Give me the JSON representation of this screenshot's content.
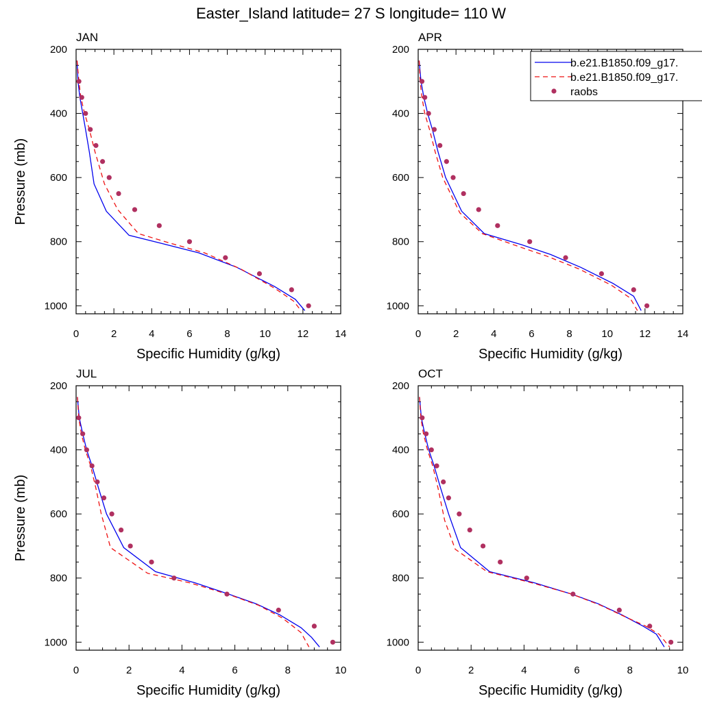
{
  "title": "Easter_Island  latitude= 27 S longitude= 110 W",
  "colors": {
    "model1": "#0000ee",
    "model2": "#ee1111",
    "obs": "#b03060",
    "axis": "#000000"
  },
  "legend": {
    "entries": [
      {
        "label": "b.e21.B1850.f09_g17.",
        "style": "solid-line",
        "color": "#0000ee"
      },
      {
        "label": "b.e21.B1850.f09_g17.",
        "style": "dashed-line",
        "color": "#ee1111"
      },
      {
        "label": "raobs",
        "style": "marker",
        "color": "#b03060"
      }
    ],
    "placement": "top-right (APR panel)"
  },
  "chart_data": [
    {
      "type": "line",
      "panel_label": "JAN",
      "xlabel": "Specific Humidity (g/kg)",
      "ylabel": "Pressure (mb)",
      "xlim": [
        0,
        14
      ],
      "xticks": [
        0,
        2,
        4,
        6,
        8,
        10,
        12,
        14
      ],
      "ylim": [
        1025,
        200
      ],
      "yticks": [
        200,
        400,
        600,
        800,
        1000
      ],
      "y_reversed": true,
      "grid": false,
      "series": [
        {
          "name": "b.e21.B1850.f09_g17.",
          "style": "solid",
          "color": "#0000ee",
          "x": [
            0.05,
            0.1,
            0.2,
            0.35,
            0.5,
            0.7,
            0.95,
            1.6,
            2.8,
            4.5,
            6.5,
            8.5,
            10.5,
            11.6,
            12.1
          ],
          "y": [
            235,
            300,
            350,
            400,
            450,
            520,
            620,
            705,
            780,
            805,
            835,
            880,
            940,
            980,
            1015
          ]
        },
        {
          "name": "b.e21.B1850.f09_g17.",
          "style": "dashed",
          "color": "#ee1111",
          "x": [
            0.05,
            0.15,
            0.25,
            0.45,
            0.7,
            1.0,
            1.5,
            2.2,
            3.3,
            5.0,
            6.8,
            8.7,
            10.5,
            11.5,
            11.9
          ],
          "y": [
            235,
            300,
            350,
            400,
            450,
            520,
            620,
            700,
            775,
            805,
            835,
            885,
            945,
            985,
            1015
          ]
        }
      ],
      "obs": {
        "name": "raobs",
        "color": "#b03060",
        "x": [
          0.15,
          0.3,
          0.5,
          0.75,
          1.05,
          1.4,
          1.75,
          2.25,
          3.1,
          4.4,
          6.0,
          7.9,
          9.7,
          11.4,
          12.3
        ],
        "y": [
          300,
          350,
          400,
          450,
          500,
          550,
          600,
          650,
          700,
          750,
          800,
          850,
          900,
          950,
          1000
        ]
      }
    },
    {
      "type": "line",
      "panel_label": "APR",
      "xlabel": "Specific Humidity (g/kg)",
      "ylabel": "",
      "xlim": [
        0,
        14
      ],
      "xticks": [
        0,
        2,
        4,
        6,
        8,
        10,
        12,
        14
      ],
      "ylim": [
        1025,
        200
      ],
      "yticks": [
        200,
        400,
        600,
        800,
        1000
      ],
      "y_reversed": true,
      "grid": false,
      "series": [
        {
          "name": "b.e21.B1850.f09_g17.",
          "style": "solid",
          "color": "#0000ee",
          "x": [
            0.05,
            0.15,
            0.3,
            0.5,
            0.75,
            1.05,
            1.45,
            2.3,
            3.5,
            5.5,
            7.0,
            8.6,
            10.3,
            11.4,
            11.8
          ],
          "y": [
            235,
            300,
            350,
            400,
            450,
            520,
            600,
            705,
            775,
            810,
            840,
            880,
            930,
            970,
            1015
          ]
        },
        {
          "name": "b.e21.B1850.f09_g17.",
          "style": "dashed",
          "color": "#ee1111",
          "x": [
            0.05,
            0.1,
            0.2,
            0.35,
            0.6,
            0.9,
            1.3,
            2.2,
            3.4,
            5.3,
            6.8,
            8.5,
            10.2,
            11.2,
            11.6
          ],
          "y": [
            235,
            300,
            350,
            400,
            450,
            520,
            600,
            710,
            775,
            815,
            845,
            885,
            935,
            975,
            1015
          ]
        }
      ],
      "obs": {
        "name": "raobs",
        "color": "#b03060",
        "x": [
          0.2,
          0.35,
          0.55,
          0.85,
          1.15,
          1.5,
          1.85,
          2.4,
          3.2,
          4.2,
          5.9,
          7.8,
          9.7,
          11.4,
          12.1
        ],
        "y": [
          300,
          350,
          400,
          450,
          500,
          550,
          600,
          650,
          700,
          750,
          800,
          850,
          900,
          950,
          1000
        ]
      }
    },
    {
      "type": "line",
      "panel_label": "JUL",
      "xlabel": "Specific Humidity (g/kg)",
      "ylabel": "Pressure (mb)",
      "xlim": [
        0,
        10
      ],
      "xticks": [
        0,
        2,
        4,
        6,
        8,
        10
      ],
      "ylim": [
        1025,
        200
      ],
      "yticks": [
        200,
        400,
        600,
        800,
        1000
      ],
      "y_reversed": true,
      "grid": false,
      "series": [
        {
          "name": "b.e21.B1850.f09_g17.",
          "style": "solid",
          "color": "#0000ee",
          "x": [
            0.05,
            0.12,
            0.25,
            0.4,
            0.6,
            0.85,
            1.15,
            1.8,
            3.0,
            4.5,
            5.7,
            6.8,
            7.7,
            8.5,
            8.9,
            9.2
          ],
          "y": [
            235,
            300,
            350,
            400,
            450,
            520,
            600,
            705,
            780,
            815,
            848,
            880,
            915,
            955,
            985,
            1015
          ]
        },
        {
          "name": "b.e21.B1850.f09_g17.",
          "style": "dashed",
          "color": "#ee1111",
          "x": [
            0.05,
            0.1,
            0.2,
            0.35,
            0.55,
            0.75,
            0.95,
            1.3,
            2.7,
            4.3,
            5.8,
            6.9,
            7.8,
            8.5,
            8.8
          ],
          "y": [
            235,
            300,
            350,
            400,
            450,
            520,
            600,
            705,
            785,
            815,
            852,
            885,
            925,
            970,
            1015
          ]
        }
      ],
      "obs": {
        "name": "raobs",
        "color": "#b03060",
        "x": [
          0.1,
          0.25,
          0.4,
          0.6,
          0.8,
          1.05,
          1.35,
          1.7,
          2.05,
          2.85,
          3.7,
          5.7,
          7.65,
          9.0,
          9.7
        ],
        "y": [
          300,
          350,
          400,
          450,
          500,
          550,
          600,
          650,
          700,
          750,
          800,
          850,
          900,
          950,
          1000
        ]
      }
    },
    {
      "type": "line",
      "panel_label": "OCT",
      "xlabel": "Specific Humidity (g/kg)",
      "ylabel": "",
      "xlim": [
        0,
        10
      ],
      "xticks": [
        0,
        2,
        4,
        6,
        8,
        10
      ],
      "ylim": [
        1025,
        200
      ],
      "yticks": [
        200,
        400,
        600,
        800,
        1000
      ],
      "y_reversed": true,
      "grid": false,
      "series": [
        {
          "name": "b.e21.B1850.f09_g17.",
          "style": "solid",
          "color": "#0000ee",
          "x": [
            0.05,
            0.12,
            0.25,
            0.4,
            0.6,
            0.85,
            1.15,
            1.6,
            2.7,
            4.4,
            5.8,
            6.8,
            7.7,
            8.5,
            9.0,
            9.3
          ],
          "y": [
            235,
            300,
            350,
            400,
            450,
            520,
            600,
            705,
            780,
            815,
            850,
            880,
            915,
            950,
            975,
            1015
          ]
        },
        {
          "name": "b.e21.B1850.f09_g17.",
          "style": "dashed",
          "color": "#ee1111",
          "x": [
            0.05,
            0.1,
            0.2,
            0.35,
            0.55,
            0.75,
            1.0,
            1.4,
            2.6,
            4.3,
            5.8,
            6.9,
            7.8,
            8.6,
            9.1,
            9.5
          ],
          "y": [
            235,
            300,
            350,
            400,
            450,
            520,
            620,
            710,
            780,
            815,
            850,
            885,
            920,
            950,
            975,
            1015
          ]
        }
      ],
      "obs": {
        "name": "raobs",
        "color": "#b03060",
        "x": [
          0.15,
          0.3,
          0.5,
          0.7,
          0.95,
          1.15,
          1.55,
          1.95,
          2.45,
          3.1,
          4.1,
          5.85,
          7.6,
          8.75,
          9.55
        ],
        "y": [
          300,
          350,
          400,
          450,
          500,
          550,
          600,
          650,
          700,
          750,
          800,
          850,
          900,
          950,
          1000
        ]
      }
    }
  ]
}
